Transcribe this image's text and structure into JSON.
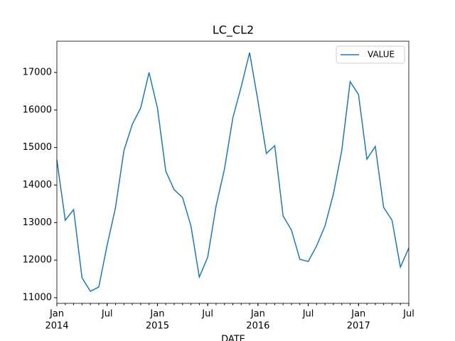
{
  "chart_data": {
    "type": "line",
    "title": "LC_CL2",
    "xlabel": "DATE",
    "x": [
      "2014-01",
      "2014-02",
      "2014-03",
      "2014-04",
      "2014-05",
      "2014-06",
      "2014-07",
      "2014-08",
      "2014-09",
      "2014-10",
      "2014-11",
      "2014-12",
      "2015-01",
      "2015-02",
      "2015-03",
      "2015-04",
      "2015-05",
      "2015-06",
      "2015-07",
      "2015-08",
      "2015-09",
      "2015-10",
      "2015-11",
      "2015-12",
      "2016-01",
      "2016-02",
      "2016-03",
      "2016-04",
      "2016-05",
      "2016-06",
      "2016-07",
      "2016-08",
      "2016-09",
      "2016-10",
      "2016-11",
      "2016-12",
      "2017-01",
      "2017-02",
      "2017-03",
      "2017-04",
      "2017-05",
      "2017-06",
      "2017-07"
    ],
    "series": [
      {
        "name": "VALUE",
        "color": "#1f77b4",
        "values": [
          14670,
          13063,
          13347,
          11530,
          11170,
          11284,
          12400,
          13404,
          14918,
          15618,
          16054,
          17000,
          16054,
          14369,
          13877,
          13669,
          12911,
          11549,
          12079,
          13441,
          14426,
          15789,
          16621,
          17530,
          16243,
          14842,
          15050,
          13176,
          12798,
          12022,
          11965,
          12381,
          12911,
          13763,
          14918,
          16754,
          16413,
          14691,
          15031,
          13404,
          13063,
          11814,
          12325
        ]
      }
    ],
    "xlim": [
      "2014-01",
      "2017-07"
    ],
    "xticks": [
      {
        "value": "2014-01",
        "label": "Jan"
      },
      {
        "value": "2014-07",
        "label": "Jul"
      },
      {
        "value": "2015-01",
        "label": "Jan"
      },
      {
        "value": "2015-07",
        "label": "Jul"
      },
      {
        "value": "2016-01",
        "label": "Jan"
      },
      {
        "value": "2016-07",
        "label": "Jul"
      },
      {
        "value": "2017-01",
        "label": "Jan"
      },
      {
        "value": "2017-07",
        "label": "Jul"
      }
    ],
    "xyears": [
      {
        "value": "2014-01",
        "label": "2014"
      },
      {
        "value": "2015-01",
        "label": "2015"
      },
      {
        "value": "2016-01",
        "label": "2016"
      },
      {
        "value": "2017-01",
        "label": "2017"
      }
    ],
    "ylim": [
      10849,
      17833
    ],
    "yticks": [
      11000,
      12000,
      13000,
      14000,
      15000,
      16000,
      17000
    ],
    "grid": false,
    "legend": "upper right"
  }
}
